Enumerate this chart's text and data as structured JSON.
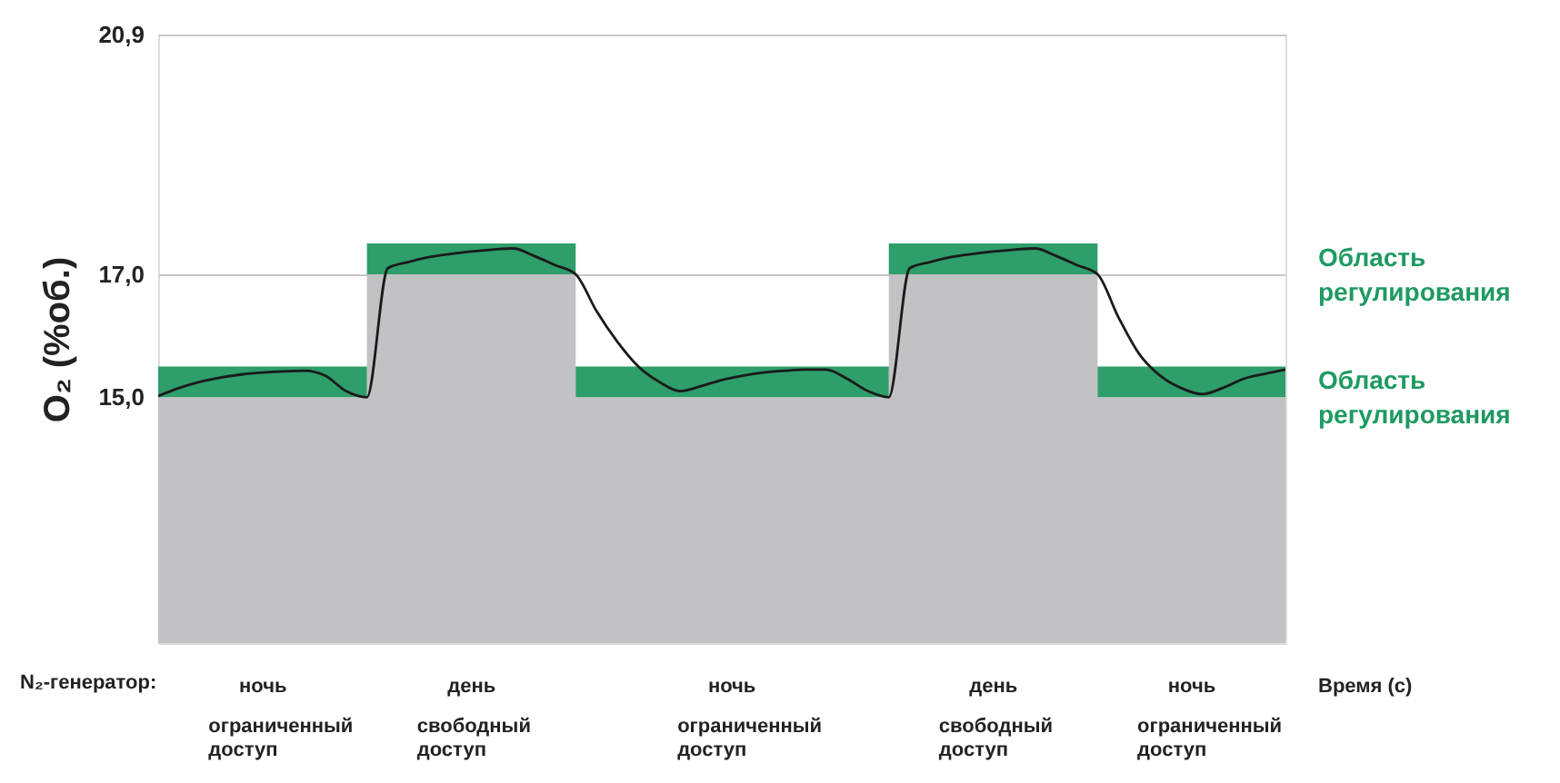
{
  "chart_data": {
    "type": "line",
    "ylabel": "O₂ (%об.)",
    "categories": [
      null,
      null,
      null,
      null,
      null,
      null,
      null,
      null,
      null,
      null,
      null,
      null,
      null,
      null,
      null,
      null,
      null,
      null,
      null,
      null,
      null,
      null,
      null,
      null,
      null,
      null,
      null,
      null,
      null,
      null,
      null,
      null,
      null,
      null,
      null,
      null,
      null,
      null,
      null,
      null,
      null,
      null,
      null,
      null,
      null,
      null,
      null,
      null,
      null,
      null,
      null,
      null,
      null,
      null,
      null
    ],
    "series": [
      {
        "type": "area",
        "color": "#c2c2c4",
        "values": [
          15,
          15,
          15,
          15,
          15,
          15,
          15,
          15,
          15,
          15,
          17,
          17,
          17,
          17,
          17,
          17,
          17,
          17,
          17,
          17,
          15,
          15,
          15,
          15,
          15,
          15,
          15,
          15,
          15,
          15,
          15,
          15,
          15,
          15,
          15,
          17,
          17,
          17,
          17,
          17,
          17,
          17,
          17,
          17,
          17,
          15,
          15,
          15,
          15,
          15,
          15,
          15,
          15,
          15,
          15
        ]
      },
      {
        "type": "area",
        "color": "#2e9e6b",
        "values": [
          15.5,
          15.5,
          15.5,
          15.5,
          15.5,
          15.5,
          15.5,
          15.5,
          15.5,
          15.5,
          17.5,
          17.5,
          17.5,
          17.5,
          17.5,
          17.5,
          17.5,
          17.5,
          17.5,
          17.5,
          15.5,
          15.5,
          15.5,
          15.5,
          15.5,
          15.5,
          15.5,
          15.5,
          15.5,
          15.5,
          15.5,
          15.5,
          15.5,
          15.5,
          15.5,
          17.5,
          17.5,
          17.5,
          17.5,
          17.5,
          17.5,
          17.5,
          17.5,
          17.5,
          17.5,
          15.5,
          15.5,
          15.5,
          15.5,
          15.5,
          15.5,
          15.5,
          15.5,
          15.5,
          15.5
        ]
      },
      {
        "color": "#1a1a1a",
        "values": [
          15.02,
          15.15,
          15.25,
          15.32,
          15.37,
          15.4,
          15.42,
          15.43,
          15.35,
          15.1,
          15.0,
          17.1,
          17.2,
          17.28,
          17.33,
          17.37,
          17.4,
          17.42,
          17.3,
          17.15,
          17.0,
          16.4,
          15.9,
          15.5,
          15.25,
          15.1,
          15.18,
          15.28,
          15.35,
          15.4,
          15.43,
          15.45,
          15.45,
          15.3,
          15.1,
          15.0,
          17.1,
          17.2,
          17.28,
          17.33,
          17.37,
          17.4,
          17.42,
          17.3,
          17.15,
          17.0,
          16.3,
          15.7,
          15.35,
          15.15,
          15.05,
          15.15,
          15.3,
          15.38,
          15.45
        ]
      }
    ],
    "ylim": [
      11,
      20.9
    ],
    "yticks": [
      {
        "value": 15,
        "label": "15,0"
      },
      {
        "value": 17,
        "label": "17,0"
      },
      {
        "value": 20.9,
        "label": "20,9"
      }
    ],
    "grid": "y",
    "annotations": [
      "Область регулирования",
      "Область регулирования",
      "N₂-генератор:",
      "ночь",
      "день",
      "ночь",
      "день",
      "ночь",
      "ограниченный доступ",
      "свободный доступ",
      "ограниченный доступ",
      "свободный доступ",
      "ограниченный доступ",
      "Время (с)"
    ]
  }
}
